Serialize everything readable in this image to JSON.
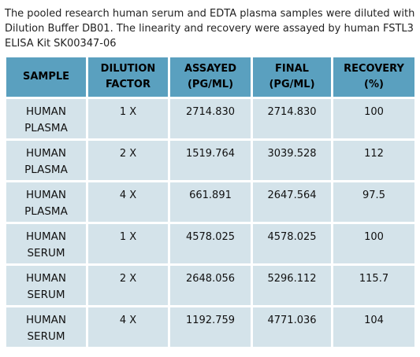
{
  "caption": "The pooled research human serum and EDTA plasma samples were diluted with Dilution Buffer DB01. The linearity and recovery were assayed by human FSTL3 ELISA Kit SK00347-06",
  "table": {
    "headers": [
      [
        "SAMPLE"
      ],
      [
        "DILUTION",
        "FACTOR"
      ],
      [
        "ASSAYED",
        "(PG/ML)"
      ],
      [
        "FINAL",
        "(PG/ML)"
      ],
      [
        "RECOVERY",
        "(%)"
      ]
    ],
    "rows": [
      {
        "sample": [
          "HUMAN",
          "PLASMA"
        ],
        "dilution": "1 X",
        "assayed": "2714.830",
        "final": "2714.830",
        "recovery": "100"
      },
      {
        "sample": [
          "HUMAN",
          "PLASMA"
        ],
        "dilution": "2  X",
        "assayed": "1519.764",
        "final": "3039.528",
        "recovery": "112"
      },
      {
        "sample": [
          "HUMAN",
          "PLASMA"
        ],
        "dilution": "4  X",
        "assayed": "661.891",
        "final": "2647.564",
        "recovery": "97.5"
      },
      {
        "sample": [
          "HUMAN",
          "SERUM"
        ],
        "dilution": "1  X",
        "assayed": "4578.025",
        "final": "4578.025",
        "recovery": "100"
      },
      {
        "sample": [
          "HUMAN",
          "SERUM"
        ],
        "dilution": "2 X",
        "assayed": "2648.056",
        "final": "5296.112",
        "recovery": "115.7"
      },
      {
        "sample": [
          "HUMAN",
          "SERUM"
        ],
        "dilution": "4 X",
        "assayed": "1192.759",
        "final": "4771.036",
        "recovery": "104"
      }
    ]
  },
  "colors": {
    "header_bg": "#5aa0bf",
    "cell_bg": "#d4e3ea"
  }
}
